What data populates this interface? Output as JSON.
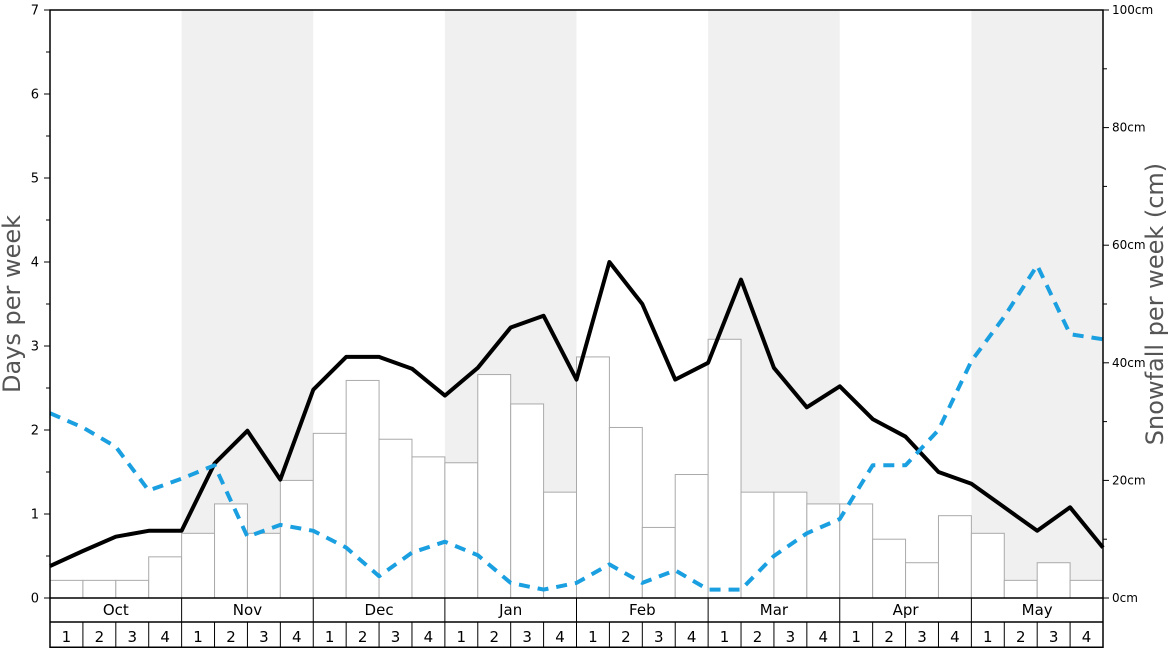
{
  "chart_data": {
    "type": "bar+line",
    "months": [
      "Oct",
      "Nov",
      "Dec",
      "Jan",
      "Feb",
      "Mar",
      "Apr",
      "May"
    ],
    "weeks": [
      "1",
      "2",
      "3",
      "4"
    ],
    "y_left": {
      "label": "Days per week",
      "range": [
        0,
        7
      ],
      "ticks": [
        "0",
        "1",
        "2",
        "3",
        "4",
        "5",
        "6",
        "7"
      ]
    },
    "y_right": {
      "label": "Snowfall per week (cm)",
      "range": [
        0,
        100
      ],
      "ticks": [
        {
          "value": 0,
          "label": "0cm"
        },
        {
          "value": 20,
          "label": "20cm"
        },
        {
          "value": 40,
          "label": "40cm"
        },
        {
          "value": 60,
          "label": "60cm"
        },
        {
          "value": 80,
          "label": "80cm"
        },
        {
          "value": 100,
          "label": "100cm"
        }
      ]
    },
    "snowfall_bars_cm": [
      3,
      3,
      3,
      7,
      11,
      16,
      11,
      20,
      28,
      37,
      27,
      24,
      23,
      38,
      33,
      18,
      41,
      29,
      12,
      21,
      44,
      18,
      18,
      16,
      16,
      10,
      6,
      14,
      11,
      3,
      6,
      3
    ],
    "series": [
      {
        "style": "solid",
        "color": "#000000",
        "values": [
          0.38,
          0.56,
          0.73,
          0.8,
          0.8,
          1.6,
          1.99,
          1.41,
          2.48,
          2.87,
          2.87,
          2.73,
          2.41,
          2.74,
          3.22,
          3.36,
          2.6,
          4.0,
          3.5,
          2.6,
          2.8,
          3.79,
          2.74,
          2.27,
          2.52,
          2.13,
          1.92,
          1.5,
          1.36,
          1.08,
          0.8,
          1.08,
          0.6
        ]
      },
      {
        "style": "dashed",
        "color": "#1a9fe0",
        "values": [
          2.2,
          2.03,
          1.8,
          1.28,
          1.42,
          1.58,
          0.73,
          0.87,
          0.8,
          0.6,
          0.26,
          0.54,
          0.67,
          0.51,
          0.18,
          0.1,
          0.18,
          0.4,
          0.18,
          0.33,
          0.1,
          0.1,
          0.5,
          0.77,
          0.94,
          1.58,
          1.58,
          2.0,
          2.82,
          3.35,
          3.96,
          3.14,
          3.08
        ]
      }
    ],
    "colors": {
      "band_shade": "#f0f0f0",
      "bar_fill": "#ffffff",
      "bar_stroke": "#aaaaaa",
      "solid_line": "#000000",
      "dashed_line": "#1a9fe0"
    },
    "shaded_months": [
      1,
      3,
      5,
      7
    ]
  }
}
